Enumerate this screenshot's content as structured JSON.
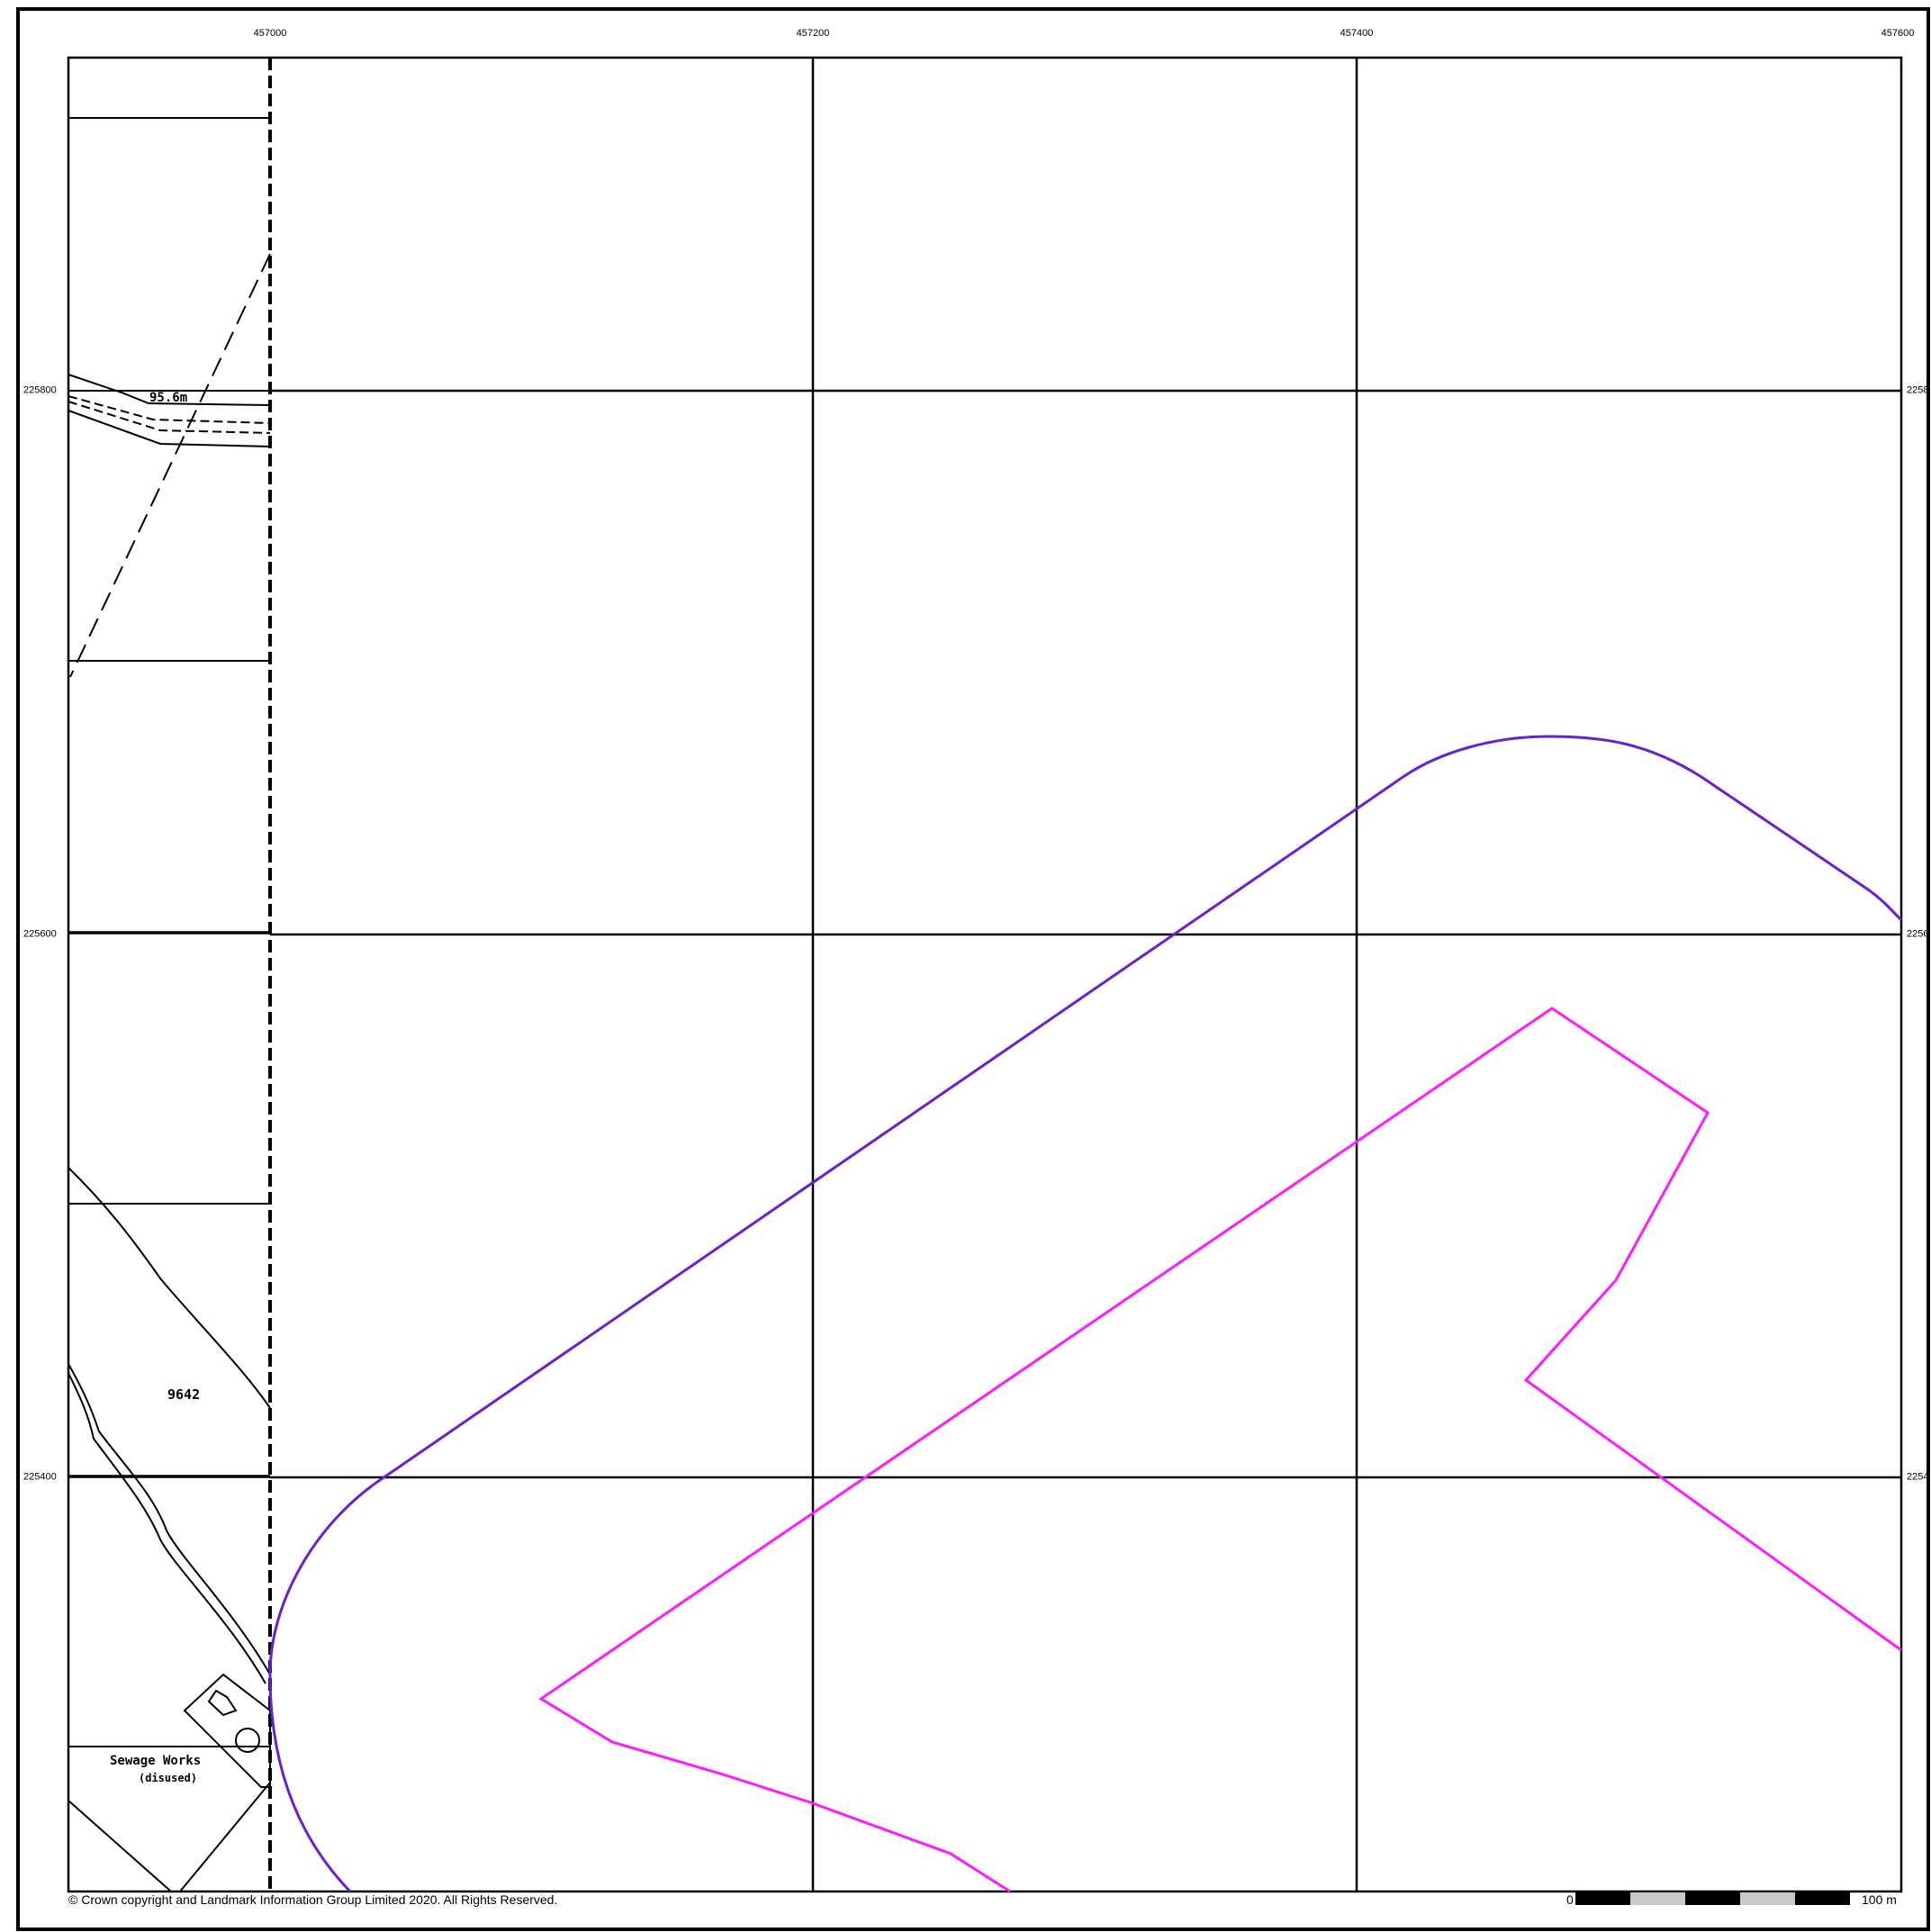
{
  "grid": {
    "eastings": [
      "457000",
      "457200",
      "457400",
      "457600"
    ],
    "northings": [
      "225800",
      "225600",
      "225400"
    ],
    "northings_right": [
      "2258",
      "2256",
      "2254"
    ]
  },
  "labels": {
    "spot_height": "95.6m",
    "parcel_number": "9642",
    "sewage_works": "Sewage Works",
    "disused": "(disused)"
  },
  "footer": {
    "copyright": "© Crown copyright and Landmark Information Group Limited 2020.  All Rights Reserved.",
    "scale_start": "0",
    "scale_end": "100 m"
  },
  "colors": {
    "buffer_outline": "#6a1fd0",
    "site_boundary": "#ff1aff",
    "grid": "#000000"
  }
}
